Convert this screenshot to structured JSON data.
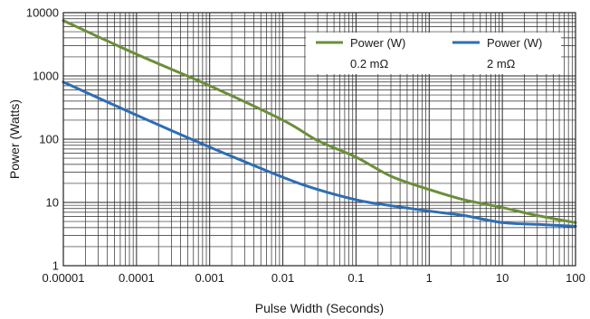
{
  "chart_data": {
    "type": "line",
    "xlabel": "Pulse Width (Seconds)",
    "ylabel": "Power (Watts)",
    "x_scale": "log",
    "y_scale": "log",
    "xlim": [
      1e-05,
      100
    ],
    "ylim": [
      1,
      10000
    ],
    "grid": true,
    "legend_position": "top-right",
    "x_tick_labels": [
      "0.00001",
      "0.0001",
      "0.001",
      "0.01",
      "0.1",
      "1",
      "10",
      "100"
    ],
    "y_tick_labels": [
      "1",
      "10",
      "100",
      "1000",
      "10000"
    ],
    "series": [
      {
        "name": "Power (W)",
        "name_line2": "0.2 mΩ",
        "color": "#6b8e3a",
        "x": [
          1e-05,
          0.0001,
          0.001,
          0.01,
          0.03,
          0.1,
          0.3,
          1,
          3,
          10,
          30,
          100
        ],
        "y": [
          7500,
          2200,
          700,
          200,
          95,
          52,
          26,
          16,
          11,
          8.3,
          6.2,
          4.8
        ]
      },
      {
        "name": "Power (W)",
        "name_line2": "2 mΩ",
        "color": "#2e6db4",
        "x": [
          1e-05,
          0.0001,
          0.001,
          0.01,
          0.03,
          0.1,
          0.2,
          1,
          3,
          10,
          30,
          100
        ],
        "y": [
          800,
          240,
          75,
          25,
          16,
          11,
          9.5,
          7.3,
          6.2,
          4.8,
          4.5,
          4.2
        ]
      }
    ]
  }
}
